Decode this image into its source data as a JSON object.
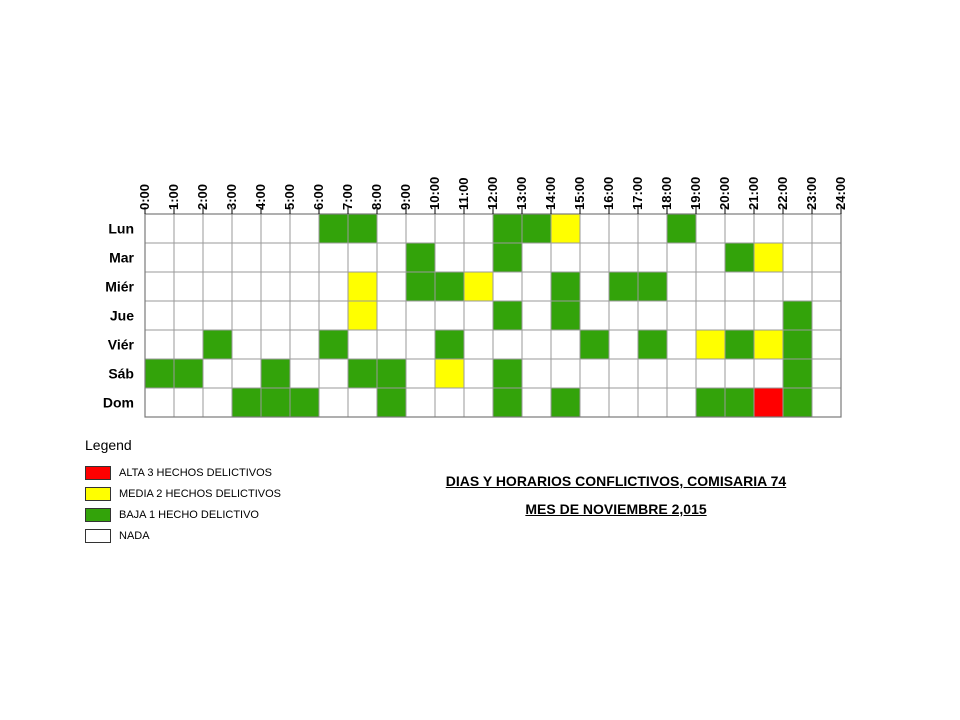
{
  "chart_data": {
    "type": "heatmap",
    "x_labels": [
      "0:00",
      "1:00",
      "2:00",
      "3:00",
      "4:00",
      "5:00",
      "6:00",
      "7:00",
      "8:00",
      "9:00",
      "10:00",
      "11:00",
      "12:00",
      "13:00",
      "14:00",
      "15:00",
      "16:00",
      "17:00",
      "18:00",
      "19:00",
      "20:00",
      "21:00",
      "22:00",
      "23:00",
      "24:00"
    ],
    "y_labels": [
      "Lun",
      "Mar",
      "Miér",
      "Jue",
      "Viér",
      "Sáb",
      "Dom"
    ],
    "values": [
      [
        0,
        0,
        0,
        0,
        0,
        0,
        1,
        1,
        0,
        0,
        0,
        0,
        1,
        1,
        2,
        0,
        0,
        0,
        1,
        0,
        0,
        0,
        0,
        0
      ],
      [
        0,
        0,
        0,
        0,
        0,
        0,
        0,
        0,
        0,
        1,
        0,
        0,
        1,
        0,
        0,
        0,
        0,
        0,
        0,
        0,
        1,
        2,
        0,
        0
      ],
      [
        0,
        0,
        0,
        0,
        0,
        0,
        0,
        2,
        0,
        1,
        1,
        2,
        0,
        0,
        1,
        0,
        1,
        1,
        0,
        0,
        0,
        0,
        0,
        0
      ],
      [
        0,
        0,
        0,
        0,
        0,
        0,
        0,
        2,
        0,
        0,
        0,
        0,
        1,
        0,
        1,
        0,
        0,
        0,
        0,
        0,
        0,
        0,
        1,
        0
      ],
      [
        0,
        0,
        1,
        0,
        0,
        0,
        1,
        0,
        0,
        0,
        1,
        0,
        0,
        0,
        0,
        1,
        0,
        1,
        0,
        2,
        1,
        2,
        1,
        0
      ],
      [
        1,
        1,
        0,
        0,
        1,
        0,
        0,
        1,
        1,
        0,
        2,
        0,
        1,
        0,
        0,
        0,
        0,
        0,
        0,
        0,
        0,
        0,
        1,
        0
      ],
      [
        0,
        0,
        0,
        1,
        1,
        1,
        0,
        0,
        1,
        0,
        0,
        0,
        1,
        0,
        1,
        0,
        0,
        0,
        0,
        1,
        1,
        3,
        1,
        0
      ]
    ],
    "color_scale": {
      "0": "#ffffff",
      "1": "#33a30a",
      "2": "#ffff00",
      "3": "#ff0000"
    },
    "grid": true,
    "legend_position": "bottom-left"
  },
  "legend": {
    "title": "Legend",
    "items": [
      {
        "label": "ALTA 3 HECHOS DELICTIVOS",
        "color": "#ff0000"
      },
      {
        "label": "MEDIA 2 HECHOS DELICTIVOS",
        "color": "#ffff00"
      },
      {
        "label": "BAJA 1 HECHO DELICTIVO",
        "color": "#33a30a"
      },
      {
        "label": "NADA",
        "color": "#ffffff"
      }
    ]
  },
  "caption": {
    "line1": "DIAS Y HORARIOS CONFLICTIVOS, COMISARIA 74 ",
    "line2": "MES DE NOVIEMBRE 2,015"
  }
}
